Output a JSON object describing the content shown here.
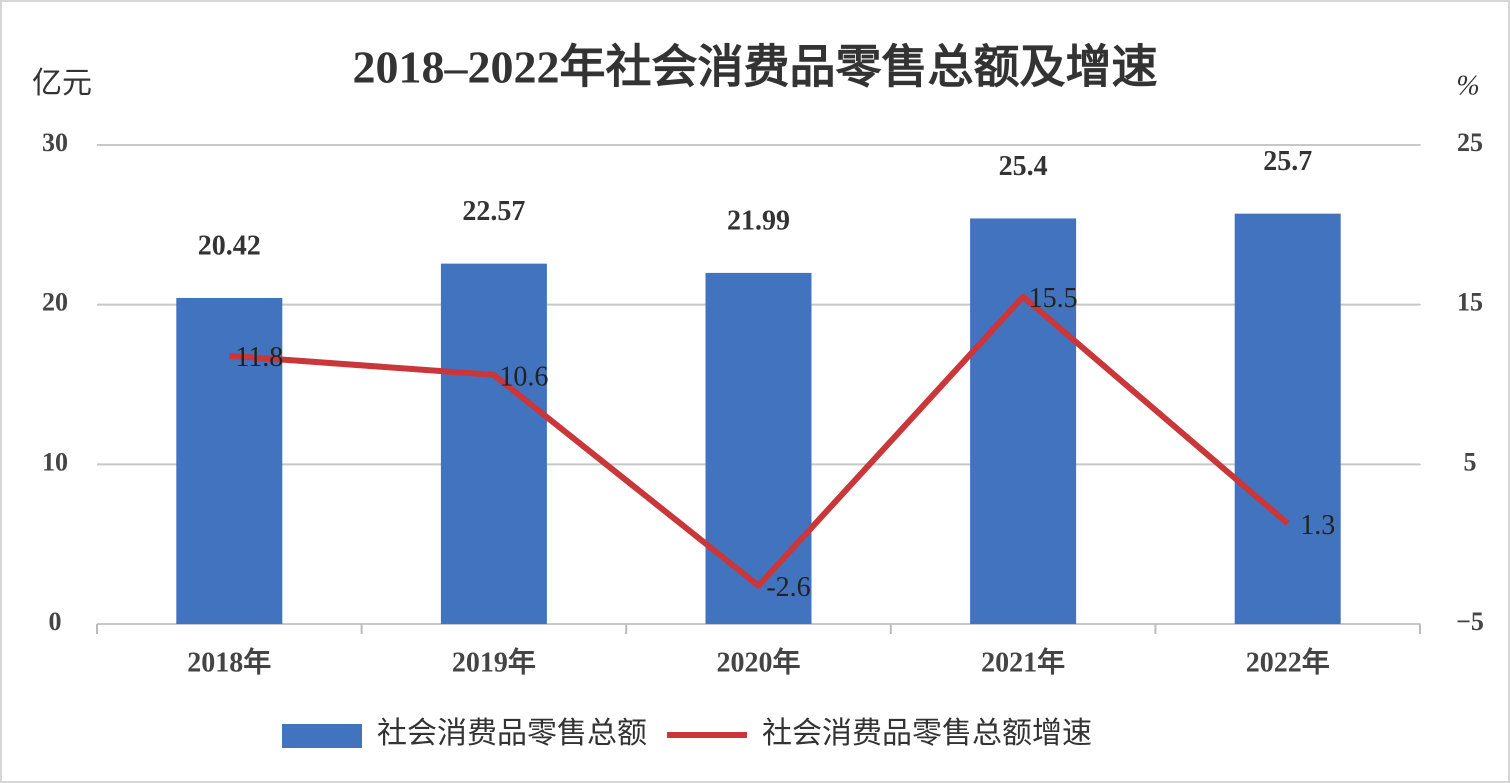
{
  "chart_data": {
    "type": "bar",
    "title": "2018–2022年社会消费品零售总额及增速",
    "y_label": "亿元",
    "y2_label": "%",
    "categories": [
      "2018年",
      "2019年",
      "2020年",
      "2021年",
      "2022年"
    ],
    "series": [
      {
        "name": "社会消费品零售总额",
        "type": "bar",
        "color": "#4273bf",
        "values": [
          20.42,
          22.57,
          21.99,
          25.4,
          25.7
        ]
      },
      {
        "name": "社会消费品零售总额增速",
        "type": "line",
        "axis": "y2",
        "color": "#c9373a",
        "values": [
          11.8,
          10.6,
          -2.6,
          15.5,
          1.3
        ]
      }
    ],
    "ylim": [
      0,
      30
    ],
    "yticks": [
      0,
      10,
      20,
      30
    ],
    "y2lim": [
      -5,
      25
    ],
    "y2ticks": [
      {
        "value": -5,
        "label": "−5"
      },
      5,
      15,
      25
    ],
    "grid": true,
    "legend": "bottom"
  }
}
